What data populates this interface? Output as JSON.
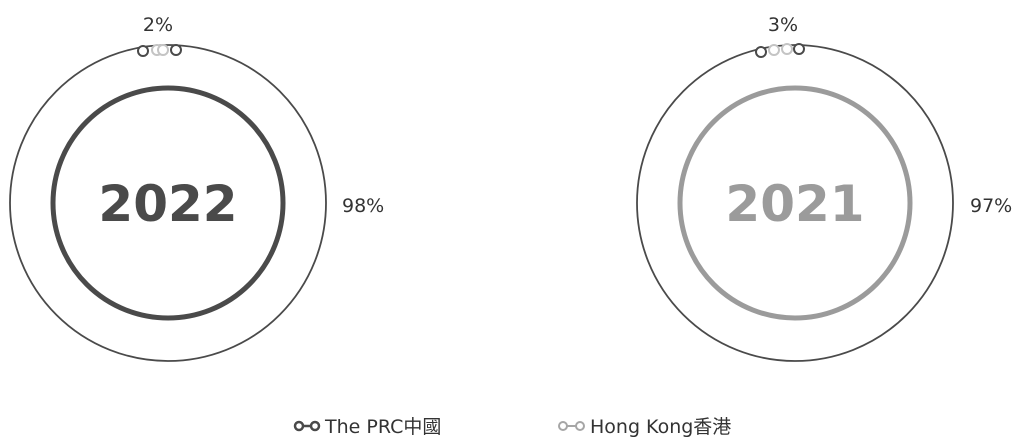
{
  "chart_data": [
    {
      "type": "pie",
      "center_label": "2022",
      "slices": [
        {
          "name": "The PRC中國",
          "value": 98,
          "label": "98%"
        },
        {
          "name": "Hong Kong香港",
          "value": 2,
          "label": "2%"
        }
      ]
    },
    {
      "type": "pie",
      "center_label": "2021",
      "slices": [
        {
          "name": "The PRC中國",
          "value": 97,
          "label": "97%"
        },
        {
          "name": "Hong Kong香港",
          "value": 3,
          "label": "3%"
        }
      ]
    }
  ],
  "legend": [
    {
      "label": "The PRC中國",
      "color": "#4a4a4a"
    },
    {
      "label": "Hong Kong香港",
      "color": "#a6a6a6"
    }
  ],
  "colors": {
    "ring": "#4a4a4a",
    "hk": "#c4c4c4",
    "year_2022": "#4a4a4a",
    "year_2021": "#9b9b9b"
  }
}
